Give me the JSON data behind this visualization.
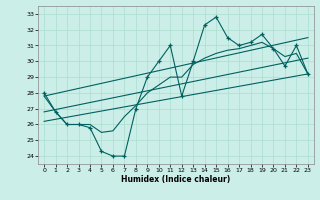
{
  "title": "",
  "xlabel": "Humidex (Indice chaleur)",
  "bg_color": "#cceee8",
  "grid_color": "#aaddcc",
  "line_color": "#006060",
  "xlim": [
    -0.5,
    23.5
  ],
  "ylim": [
    23.5,
    33.5
  ],
  "xticks": [
    0,
    1,
    2,
    3,
    4,
    5,
    6,
    7,
    8,
    9,
    10,
    11,
    12,
    13,
    14,
    15,
    16,
    17,
    18,
    19,
    20,
    21,
    22,
    23
  ],
  "yticks": [
    24,
    25,
    26,
    27,
    28,
    29,
    30,
    31,
    32,
    33
  ],
  "main_line_x": [
    0,
    1,
    2,
    3,
    4,
    5,
    6,
    7,
    8,
    9,
    10,
    11,
    12,
    13,
    14,
    15,
    16,
    17,
    18,
    19,
    20,
    21,
    22,
    23
  ],
  "main_line_y": [
    28.0,
    26.8,
    26.0,
    26.0,
    25.8,
    24.3,
    24.0,
    24.0,
    27.0,
    29.0,
    30.0,
    31.0,
    27.8,
    30.0,
    32.3,
    32.8,
    31.5,
    31.0,
    31.2,
    31.7,
    30.8,
    29.7,
    31.0,
    29.2
  ],
  "trend_line1_x": [
    0,
    23
  ],
  "trend_line1_y": [
    27.8,
    31.5
  ],
  "trend_line2_x": [
    0,
    23
  ],
  "trend_line2_y": [
    26.8,
    30.2
  ],
  "trend_line3_x": [
    0,
    23
  ],
  "trend_line3_y": [
    26.2,
    29.2
  ],
  "smooth_line_x": [
    0,
    1,
    2,
    3,
    4,
    5,
    6,
    7,
    8,
    9,
    10,
    11,
    12,
    13,
    14,
    15,
    16,
    17,
    18,
    19,
    20,
    21,
    22,
    23
  ],
  "smooth_line_y": [
    27.8,
    26.8,
    26.0,
    26.0,
    26.0,
    25.5,
    25.6,
    26.5,
    27.2,
    28.0,
    28.5,
    29.0,
    29.0,
    29.8,
    30.2,
    30.5,
    30.7,
    30.8,
    31.0,
    31.2,
    30.8,
    30.3,
    30.5,
    29.2
  ]
}
